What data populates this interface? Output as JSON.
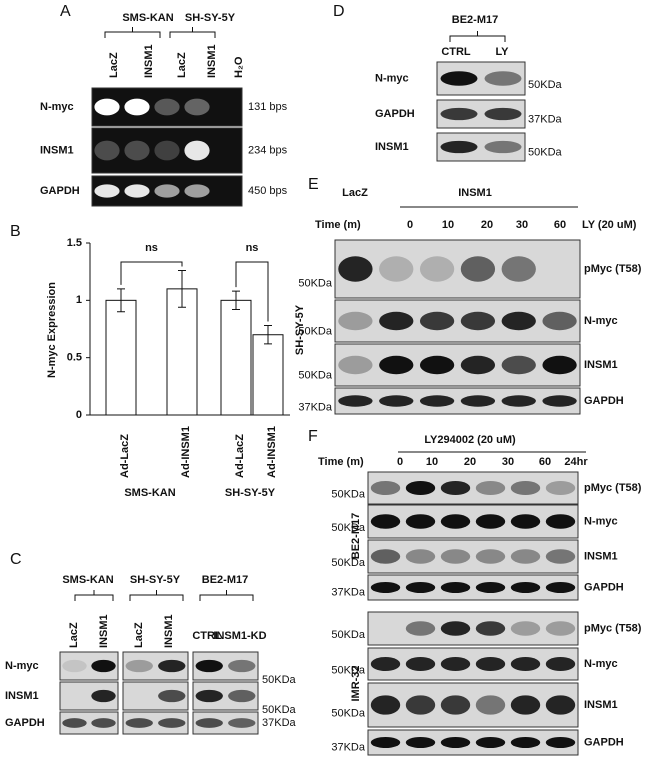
{
  "panel_a": {
    "label": "A",
    "groups": [
      "SMS-KAN",
      "SH-SY-5Y"
    ],
    "lanes": [
      "LacZ",
      "INSM1",
      "LacZ",
      "INSM1",
      "H₂O"
    ],
    "rows": [
      {
        "name": "N-myc",
        "size": "131 bps"
      },
      {
        "name": "INSM1",
        "size": "234 bps"
      },
      {
        "name": "GAPDH",
        "size": "450 bps"
      }
    ]
  },
  "chart_data": {
    "type": "bar",
    "panel": "B",
    "ylabel": "N-myc Expression",
    "categories": [
      "Ad-LacZ",
      "Ad-INSM1",
      "Ad-LacZ",
      "Ad-INSM1"
    ],
    "groups": [
      "SMS-KAN",
      "SH-SY-5Y"
    ],
    "values": [
      1.0,
      1.1,
      1.0,
      0.7
    ],
    "errors": [
      0.1,
      0.16,
      0.08,
      0.08
    ],
    "color": "#ffffff",
    "significance": [
      "ns",
      "ns"
    ],
    "ylim": [
      0,
      1.5
    ],
    "yticks": [
      0,
      0.5,
      1,
      1.5
    ]
  },
  "panel_c": {
    "label": "C",
    "groups": [
      "SMS-KAN",
      "SH-SY-5Y",
      "BE2-M17"
    ],
    "lanes": [
      "LacZ",
      "INSM1",
      "LacZ",
      "INSM1",
      "CTRL",
      "INSM1-KD"
    ],
    "rows": [
      "N-myc",
      "INSM1",
      "GAPDH"
    ],
    "markers": [
      "50KDa",
      "50KDa",
      "37KDa"
    ]
  },
  "panel_d": {
    "label": "D",
    "group": "BE2-M17",
    "lanes": [
      "CTRL",
      "LY"
    ],
    "rows": [
      "N-myc",
      "GAPDH",
      "INSM1"
    ],
    "markers": [
      "50KDa",
      "37KDa",
      "50KDa"
    ]
  },
  "panel_e": {
    "label": "E",
    "control": "LacZ",
    "treated": "INSM1",
    "time_label": "Time (m)",
    "times": [
      "0",
      "10",
      "20",
      "30",
      "60"
    ],
    "treatment": "LY (20 uM)",
    "cell_line": "SH-SY-5Y",
    "rows": [
      "pMyc (T58)",
      "N-myc",
      "INSM1",
      "GAPDH"
    ],
    "markers": [
      "50KDa",
      "50KDa",
      "50KDa",
      "37KDa"
    ]
  },
  "panel_f": {
    "label": "F",
    "treatment": "LY294002 (20 uM)",
    "time_label": "Time (m)",
    "times": [
      "0",
      "10",
      "20",
      "30",
      "60",
      "24hr"
    ],
    "blocks": [
      {
        "cell_line": "BE2-M17",
        "rows": [
          "pMyc (T58)",
          "N-myc",
          "INSM1",
          "GAPDH"
        ],
        "markers": [
          "50KDa",
          "50KDa",
          "50KDa",
          "37KDa"
        ]
      },
      {
        "cell_line": "IMR-32",
        "rows": [
          "pMyc (T58)",
          "N-myc",
          "INSM1",
          "GAPDH"
        ],
        "markers": [
          "50KDa",
          "50KDa",
          "50KDa",
          "37KDa"
        ]
      }
    ]
  }
}
